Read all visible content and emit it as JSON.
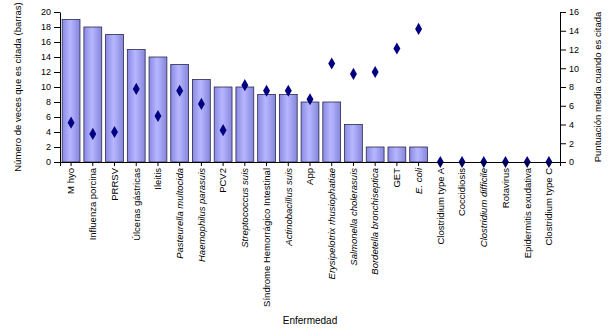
{
  "chart_data": {
    "type": "bar",
    "x_label": "Enfermedad",
    "y_label": "Número de veces que es citada (barras)",
    "y2_label": "Puntuación media cuando es citada",
    "categories": [
      "M hyo",
      "Influenza porcina",
      "PRRSV",
      "Úlceras gástricas",
      "Ileitis",
      "Pasteurella multocida",
      "Haemophilus parasuis",
      "PCV2",
      "Streptococcus suis",
      "Síndrome Hemorrágico Intestinal",
      "Actinobacillus suis",
      "App",
      "Erysipelotrix rhusiophatiae",
      "Salmonella cholerasuis",
      "Bordetella bronchiseptica",
      "GET",
      "E. coli",
      "Clostridium type A",
      "Coccidiosis",
      "Clostridium difficile",
      "Rotavirus",
      "Epidermitis exudativa",
      "Clostridium type C"
    ],
    "series": [
      {
        "type": "bar",
        "color": "#9999ff",
        "values": [
          19,
          18,
          17,
          15,
          14,
          13,
          11,
          10,
          10,
          9,
          9,
          8,
          8,
          5,
          2,
          2,
          2,
          0,
          0,
          0,
          0,
          0,
          0
        ]
      },
      {
        "type": "scatter",
        "axis": "y2",
        "marker": "diamond",
        "color": "#000080",
        "values": [
          4.2,
          3.0,
          3.2,
          7.8,
          4.9,
          7.6,
          6.2,
          3.4,
          8.2,
          7.6,
          7.6,
          6.7,
          10.5,
          9.4,
          9.6,
          12.1,
          14.2,
          0,
          0,
          0,
          0,
          0,
          0
        ]
      }
    ],
    "ylim": [
      0,
      20
    ],
    "yticks": [
      0,
      2,
      4,
      6,
      8,
      10,
      12,
      14,
      16,
      18,
      20
    ],
    "y2lim": [
      0,
      16
    ],
    "y2ticks": [
      0,
      2,
      4,
      6,
      8,
      10,
      12,
      14,
      16
    ],
    "grid": false
  }
}
